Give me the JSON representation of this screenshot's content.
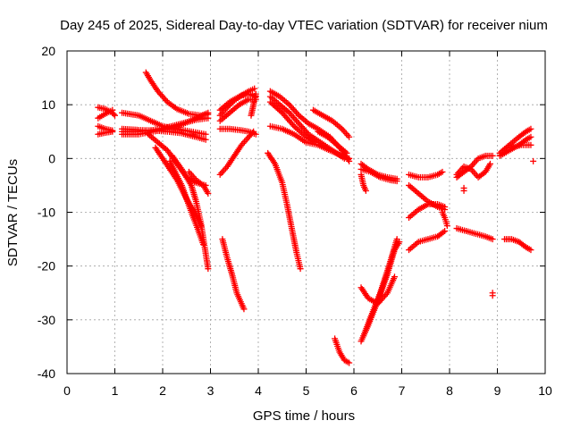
{
  "chart_data": {
    "type": "scatter",
    "title": "Day 245 of 2025, Sidereal Day-to-day VTEC variation (SDTVAR) for receiver nium",
    "xlabel": "GPS time / hours",
    "ylabel": "SDTVAR / TECUs",
    "xlim": [
      0,
      10
    ],
    "ylim": [
      -40,
      20
    ],
    "xticks": [
      0,
      1,
      2,
      3,
      4,
      5,
      6,
      7,
      8,
      9,
      10
    ],
    "yticks": [
      -40,
      -30,
      -20,
      -10,
      0,
      10,
      20
    ],
    "grid": true,
    "marker": "+",
    "color": "#ff0000",
    "segments": [
      [
        [
          0.65,
          9.5
        ],
        [
          0.8,
          9.2
        ],
        [
          0.95,
          8.5
        ],
        [
          1.0,
          8.0
        ]
      ],
      [
        [
          0.65,
          7.5
        ],
        [
          0.8,
          8.3
        ],
        [
          0.95,
          9.0
        ]
      ],
      [
        [
          0.65,
          6.0
        ],
        [
          0.8,
          5.5
        ],
        [
          0.95,
          5.2
        ]
      ],
      [
        [
          0.65,
          4.5
        ],
        [
          0.8,
          4.8
        ],
        [
          0.95,
          5.0
        ]
      ],
      [
        [
          1.15,
          8.5
        ],
        [
          1.5,
          8.0
        ],
        [
          1.75,
          7.0
        ],
        [
          2.0,
          6.0
        ],
        [
          2.3,
          5.5
        ],
        [
          2.6,
          5.0
        ],
        [
          2.9,
          4.5
        ]
      ],
      [
        [
          1.15,
          5.5
        ],
        [
          1.5,
          5.3
        ],
        [
          1.8,
          5.2
        ],
        [
          2.1,
          5.0
        ],
        [
          2.4,
          4.7
        ],
        [
          2.7,
          4.0
        ],
        [
          2.9,
          3.5
        ]
      ],
      [
        [
          1.15,
          5.0
        ],
        [
          1.5,
          5.0
        ],
        [
          1.8,
          5.3
        ],
        [
          2.1,
          5.8
        ],
        [
          2.4,
          6.5
        ],
        [
          2.7,
          7.2
        ],
        [
          2.95,
          7.5
        ]
      ],
      [
        [
          1.15,
          4.5
        ],
        [
          1.5,
          4.5
        ],
        [
          1.8,
          5.0
        ],
        [
          2.1,
          5.5
        ],
        [
          2.4,
          6.3
        ],
        [
          2.7,
          7.5
        ],
        [
          2.95,
          8.5
        ]
      ],
      [
        [
          1.65,
          16.0
        ],
        [
          1.75,
          14.5
        ],
        [
          1.9,
          12.5
        ],
        [
          2.1,
          10.5
        ],
        [
          2.3,
          9.2
        ],
        [
          2.55,
          8.3
        ],
        [
          2.8,
          8.0
        ],
        [
          2.95,
          8.2
        ]
      ],
      [
        [
          1.7,
          4.5
        ],
        [
          1.9,
          3.0
        ],
        [
          2.1,
          1.5
        ],
        [
          2.3,
          -1.0
        ],
        [
          2.5,
          -3.5
        ],
        [
          2.7,
          -4.5
        ],
        [
          2.9,
          -5.0
        ]
      ],
      [
        [
          2.2,
          0.5
        ],
        [
          2.4,
          -2.0
        ],
        [
          2.6,
          -5.0
        ],
        [
          2.7,
          -8.0
        ],
        [
          2.8,
          -12.0
        ],
        [
          2.88,
          -16.5
        ],
        [
          2.95,
          -20.5
        ]
      ],
      [
        [
          1.85,
          2.0
        ],
        [
          2.0,
          0.0
        ],
        [
          2.3,
          -4.0
        ],
        [
          2.5,
          -7.5
        ],
        [
          2.7,
          -10.5
        ],
        [
          2.8,
          -12.5
        ]
      ],
      [
        [
          2.15,
          -0.5
        ],
        [
          2.4,
          -5.0
        ],
        [
          2.6,
          -10.0
        ],
        [
          2.75,
          -13.5
        ],
        [
          2.85,
          -16.0
        ]
      ],
      [
        [
          2.55,
          -2.5
        ],
        [
          2.7,
          -4.0
        ],
        [
          2.85,
          -5.0
        ],
        [
          2.95,
          -6.5
        ]
      ],
      [
        [
          3.2,
          -3.0
        ],
        [
          3.35,
          -1.5
        ],
        [
          3.5,
          0.5
        ],
        [
          3.65,
          2.5
        ],
        [
          3.8,
          4.0
        ],
        [
          3.9,
          5.0
        ]
      ],
      [
        [
          3.2,
          5.5
        ],
        [
          3.4,
          5.5
        ],
        [
          3.6,
          5.3
        ],
        [
          3.8,
          5.0
        ],
        [
          3.95,
          4.5
        ]
      ],
      [
        [
          3.2,
          8.0
        ],
        [
          3.35,
          9.5
        ],
        [
          3.5,
          10.8
        ],
        [
          3.65,
          11.7
        ],
        [
          3.8,
          12.0
        ],
        [
          3.95,
          11.5
        ]
      ],
      [
        [
          3.2,
          7.0
        ],
        [
          3.4,
          8.5
        ],
        [
          3.6,
          10.0
        ],
        [
          3.8,
          11.0
        ],
        [
          3.95,
          11.0
        ]
      ],
      [
        [
          3.2,
          9.0
        ],
        [
          3.4,
          10.5
        ],
        [
          3.6,
          11.5
        ],
        [
          3.8,
          12.5
        ],
        [
          3.92,
          13.0
        ]
      ],
      [
        [
          3.85,
          8.0
        ],
        [
          3.9,
          10.0
        ],
        [
          3.95,
          12.0
        ]
      ],
      [
        [
          3.25,
          -15.0
        ],
        [
          3.35,
          -18.5
        ],
        [
          3.45,
          -21.5
        ],
        [
          3.55,
          -25.0
        ],
        [
          3.7,
          -28.0
        ]
      ],
      [
        [
          4.2,
          1.0
        ],
        [
          4.35,
          -1.0
        ],
        [
          4.5,
          -4.5
        ],
        [
          4.6,
          -8.5
        ],
        [
          4.7,
          -13.0
        ],
        [
          4.8,
          -17.5
        ],
        [
          4.88,
          -20.5
        ]
      ],
      [
        [
          4.25,
          12.5
        ],
        [
          4.45,
          11.5
        ],
        [
          4.65,
          10.0
        ],
        [
          4.85,
          8.0
        ],
        [
          5.05,
          6.5
        ],
        [
          5.25,
          5.5
        ],
        [
          5.5,
          4.0
        ],
        [
          5.75,
          1.5
        ],
        [
          5.9,
          -0.5
        ]
      ],
      [
        [
          4.25,
          11.5
        ],
        [
          4.45,
          10.0
        ],
        [
          4.65,
          8.5
        ],
        [
          4.85,
          6.5
        ],
        [
          5.05,
          4.5
        ],
        [
          5.3,
          3.0
        ],
        [
          5.55,
          1.5
        ],
        [
          5.8,
          0.0
        ]
      ],
      [
        [
          4.25,
          6.0
        ],
        [
          4.5,
          5.5
        ],
        [
          4.75,
          4.5
        ],
        [
          5.0,
          3.0
        ],
        [
          5.25,
          2.5
        ],
        [
          5.5,
          1.5
        ],
        [
          5.75,
          0.5
        ],
        [
          5.9,
          0.0
        ]
      ],
      [
        [
          4.25,
          10.5
        ],
        [
          4.5,
          8.5
        ],
        [
          4.75,
          6.0
        ],
        [
          5.0,
          4.0
        ],
        [
          5.2,
          3.0
        ]
      ],
      [
        [
          5.15,
          9.0
        ],
        [
          5.35,
          8.0
        ],
        [
          5.55,
          7.0
        ],
        [
          5.75,
          5.5
        ],
        [
          5.9,
          4.0
        ]
      ],
      [
        [
          5.25,
          5.0
        ],
        [
          5.45,
          4.0
        ],
        [
          5.65,
          2.5
        ],
        [
          5.85,
          1.0
        ]
      ],
      [
        [
          5.6,
          -33.5
        ],
        [
          5.7,
          -36.0
        ],
        [
          5.8,
          -37.5
        ],
        [
          5.9,
          -38.0
        ]
      ],
      [
        [
          6.15,
          -1.0
        ],
        [
          6.3,
          -2.0
        ],
        [
          6.5,
          -3.0
        ],
        [
          6.7,
          -3.5
        ],
        [
          6.9,
          -3.8
        ]
      ],
      [
        [
          6.15,
          -2.0
        ],
        [
          6.35,
          -2.5
        ],
        [
          6.55,
          -3.5
        ],
        [
          6.75,
          -4.0
        ],
        [
          6.9,
          -4.2
        ]
      ],
      [
        [
          6.15,
          -3.0
        ],
        [
          6.2,
          -5.0
        ],
        [
          6.25,
          -6.0
        ]
      ],
      [
        [
          6.15,
          -24.0
        ],
        [
          6.3,
          -26.0
        ],
        [
          6.5,
          -27.0
        ],
        [
          6.7,
          -25.0
        ],
        [
          6.85,
          -22.0
        ]
      ],
      [
        [
          6.15,
          -34.0
        ],
        [
          6.3,
          -31.0
        ],
        [
          6.5,
          -26.5
        ],
        [
          6.7,
          -21.5
        ],
        [
          6.85,
          -17.0
        ],
        [
          6.95,
          -15.5
        ]
      ],
      [
        [
          6.2,
          -33.0
        ],
        [
          6.35,
          -29.5
        ],
        [
          6.55,
          -25.0
        ],
        [
          6.75,
          -19.5
        ],
        [
          6.9,
          -15.0
        ]
      ],
      [
        [
          7.15,
          -3.0
        ],
        [
          7.35,
          -3.5
        ],
        [
          7.55,
          -3.5
        ],
        [
          7.75,
          -3.0
        ],
        [
          7.85,
          -2.5
        ]
      ],
      [
        [
          7.15,
          -5.0
        ],
        [
          7.35,
          -6.5
        ],
        [
          7.55,
          -8.0
        ],
        [
          7.75,
          -9.0
        ],
        [
          7.9,
          -9.5
        ]
      ],
      [
        [
          7.15,
          -11.0
        ],
        [
          7.35,
          -9.5
        ],
        [
          7.55,
          -8.5
        ],
        [
          7.75,
          -8.5
        ],
        [
          7.9,
          -9.0
        ]
      ],
      [
        [
          7.15,
          -17.0
        ],
        [
          7.35,
          -15.5
        ],
        [
          7.55,
          -15.0
        ],
        [
          7.75,
          -14.5
        ],
        [
          7.9,
          -13.5
        ]
      ],
      [
        [
          7.85,
          -10.0
        ],
        [
          7.9,
          -11.0
        ],
        [
          7.95,
          -12.5
        ]
      ],
      [
        [
          8.15,
          -13.0
        ],
        [
          8.35,
          -13.5
        ],
        [
          8.55,
          -14.0
        ],
        [
          8.75,
          -14.5
        ],
        [
          8.9,
          -15.0
        ]
      ],
      [
        [
          8.15,
          -3.5
        ],
        [
          8.3,
          -2.5
        ],
        [
          8.45,
          -1.5
        ],
        [
          8.6,
          0.0
        ],
        [
          8.75,
          0.5
        ],
        [
          8.9,
          0.5
        ]
      ],
      [
        [
          8.15,
          -3.0
        ],
        [
          8.3,
          -1.5
        ],
        [
          8.45,
          -2.0
        ],
        [
          8.6,
          -3.5
        ],
        [
          8.75,
          -2.5
        ],
        [
          8.85,
          -1.0
        ]
      ],
      [
        [
          8.3,
          -5.5
        ],
        [
          8.3,
          -6.0
        ]
      ],
      [
        [
          8.9,
          -25.0
        ],
        [
          8.9,
          -25.5
        ]
      ],
      [
        [
          9.15,
          -15.0
        ],
        [
          9.3,
          -15.0
        ],
        [
          9.45,
          -15.5
        ],
        [
          9.6,
          -16.5
        ],
        [
          9.7,
          -17.0
        ]
      ],
      [
        [
          9.05,
          1.0
        ],
        [
          9.25,
          2.5
        ],
        [
          9.45,
          4.0
        ],
        [
          9.6,
          5.0
        ],
        [
          9.7,
          5.5
        ]
      ],
      [
        [
          9.05,
          0.5
        ],
        [
          9.25,
          1.5
        ],
        [
          9.45,
          2.5
        ],
        [
          9.6,
          3.5
        ],
        [
          9.7,
          4.0
        ]
      ],
      [
        [
          9.3,
          2.0
        ],
        [
          9.5,
          2.5
        ],
        [
          9.7,
          2.5
        ]
      ],
      [
        [
          9.75,
          -0.5
        ]
      ]
    ]
  }
}
